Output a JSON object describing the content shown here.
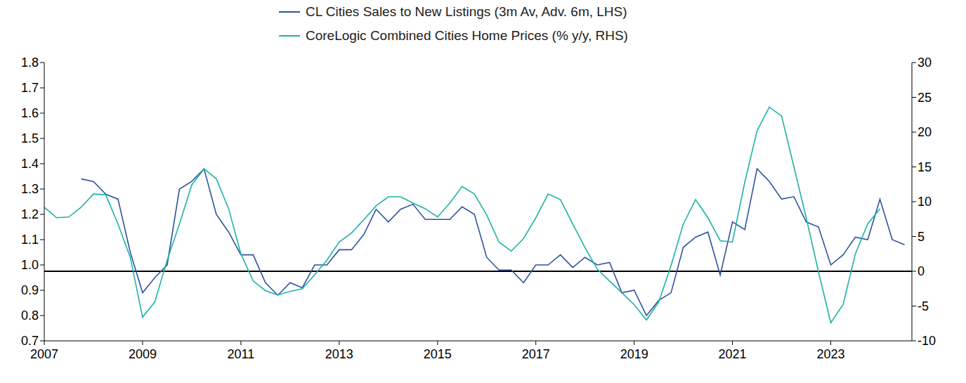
{
  "chart_data": {
    "type": "line",
    "legend": "top",
    "grid": false,
    "x": [
      2007,
      2007.25,
      2007.5,
      2007.75,
      2008,
      2008.25,
      2008.5,
      2008.75,
      2009,
      2009.25,
      2009.5,
      2009.75,
      2010,
      2010.25,
      2010.5,
      2010.75,
      2011,
      2011.25,
      2011.5,
      2011.75,
      2012,
      2012.25,
      2012.5,
      2012.75,
      2013,
      2013.25,
      2013.5,
      2013.75,
      2014,
      2014.25,
      2014.5,
      2014.75,
      2015,
      2015.25,
      2015.5,
      2015.75,
      2016,
      2016.25,
      2016.5,
      2016.75,
      2017,
      2017.25,
      2017.5,
      2017.75,
      2018,
      2018.25,
      2018.5,
      2018.75,
      2019,
      2019.25,
      2019.5,
      2019.75,
      2020,
      2020.25,
      2020.5,
      2020.75,
      2021,
      2021.25,
      2021.5,
      2021.75,
      2022,
      2022.25,
      2022.5,
      2022.75,
      2023,
      2023.25,
      2023.5,
      2023.75,
      2024,
      2024.25,
      2024.5
    ],
    "xlim": [
      2007,
      2024.65
    ],
    "xticks": [
      2007,
      2009,
      2011,
      2013,
      2015,
      2017,
      2019,
      2021,
      2023
    ],
    "ylim": [
      0.7,
      1.8
    ],
    "yticks": [
      0.7,
      0.8,
      0.9,
      {
        "value": 1,
        "label": "1.0"
      },
      1.1,
      1.2,
      1.3,
      1.4,
      1.5,
      1.6,
      1.7,
      1.8
    ],
    "y2lim": [
      -10,
      30
    ],
    "y2ticks": [
      -10,
      -5,
      0,
      5,
      10,
      15,
      20,
      25,
      30
    ],
    "series": [
      {
        "name": "CL Cities Sales to New Listings (3m Av, Adv. 6m, LHS)",
        "color": "#2f52a0",
        "axis": "y",
        "values": [
          null,
          null,
          null,
          1.34,
          1.33,
          1.28,
          1.26,
          1.05,
          0.89,
          0.95,
          1.0,
          1.3,
          1.33,
          1.38,
          1.2,
          1.13,
          1.04,
          1.04,
          0.93,
          0.88,
          0.93,
          0.91,
          1.0,
          1.0,
          1.06,
          1.06,
          1.12,
          1.22,
          1.17,
          1.22,
          1.24,
          1.18,
          1.18,
          1.18,
          1.23,
          1.2,
          1.03,
          0.98,
          0.98,
          0.93,
          1.0,
          1.0,
          1.04,
          0.99,
          1.03,
          1.0,
          1.01,
          0.89,
          0.9,
          0.8,
          0.86,
          0.89,
          1.07,
          1.11,
          1.13,
          0.96,
          1.17,
          1.14,
          1.38,
          1.33,
          1.26,
          1.27,
          1.17,
          1.15,
          1.0,
          1.04,
          1.11,
          1.1,
          1.26,
          1.1,
          1.08
        ]
      },
      {
        "name": "CoreLogic Combined Cities Home Prices (% y/y, RHS)",
        "color": "#1db3a4",
        "axis": "y2",
        "values": [
          9.2,
          7.7,
          7.8,
          9.2,
          11.1,
          11,
          6.8,
          2,
          -6.6,
          -4.4,
          1.6,
          6.8,
          12.4,
          14.7,
          13.3,
          9,
          2.5,
          -1.4,
          -2.8,
          -3.4,
          -2.9,
          -2.5,
          -0.5,
          1.6,
          4.2,
          5.5,
          7.4,
          9.4,
          10.7,
          10.7,
          9.8,
          9,
          7.8,
          9.8,
          12.2,
          11.1,
          8.1,
          4.2,
          2.9,
          4.7,
          7.7,
          11.1,
          10.3,
          6.8,
          3.4,
          0.3,
          -1.4,
          -3.1,
          -4.8,
          -7,
          -4.4,
          0.8,
          6.8,
          10.3,
          7.7,
          4.4,
          4.2,
          12.8,
          20.2,
          23.6,
          22.3,
          15,
          7.7,
          -0.1,
          -7.4,
          -4.8,
          2.5,
          6.8,
          9,
          null,
          null
        ]
      }
    ]
  }
}
